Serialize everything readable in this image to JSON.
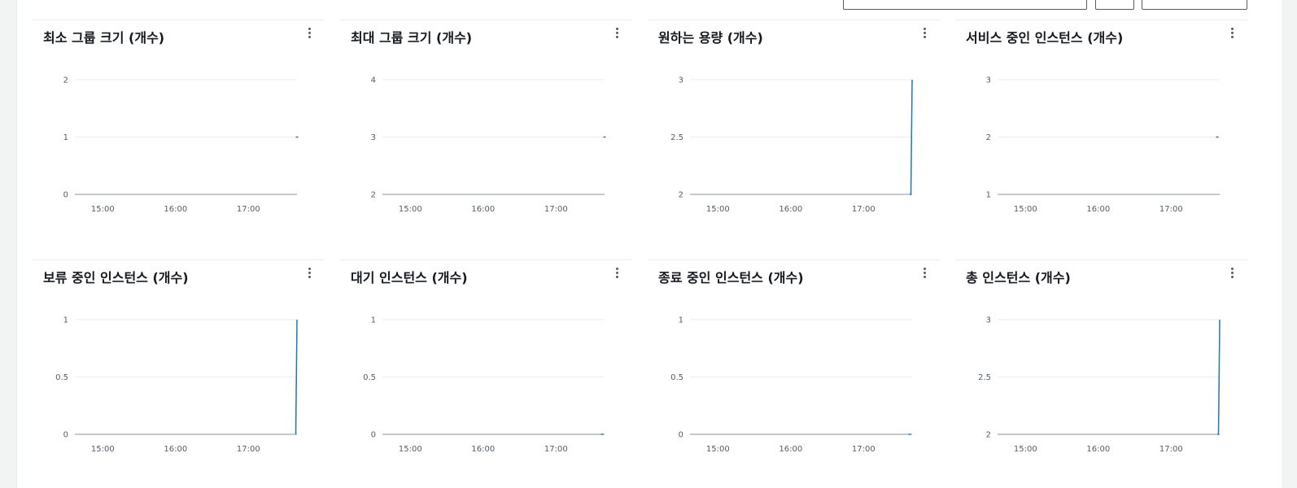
{
  "charts": [
    {
      "title": "최소 그룹 크기 (개수)",
      "ylim": [
        0,
        2
      ],
      "yticks": [
        "2",
        "1",
        "0"
      ],
      "xticks": [
        "15:00",
        "16:00",
        "17:00"
      ],
      "series": [
        {
          "x": [
            "17:40"
          ],
          "y": [
            1
          ]
        }
      ]
    },
    {
      "title": "최대 그룹 크기 (개수)",
      "ylim": [
        2,
        4
      ],
      "yticks": [
        "4",
        "3",
        "2"
      ],
      "xticks": [
        "15:00",
        "16:00",
        "17:00"
      ],
      "series": [
        {
          "x": [
            "17:40"
          ],
          "y": [
            3
          ]
        }
      ]
    },
    {
      "title": "원하는 용량 (개수)",
      "ylim": [
        2,
        3
      ],
      "yticks": [
        "3",
        "2.5",
        "2"
      ],
      "xticks": [
        "15:00",
        "16:00",
        "17:00"
      ],
      "series": [
        {
          "x": [
            "17:38",
            "17:39",
            "17:40"
          ],
          "y": [
            2,
            2,
            3
          ]
        }
      ]
    },
    {
      "title": "서비스 중인 인스턴스 (개수)",
      "ylim": [
        1,
        3
      ],
      "yticks": [
        "3",
        "2",
        "1"
      ],
      "xticks": [
        "15:00",
        "16:00",
        "17:00"
      ],
      "series": [
        {
          "x": [
            "17:38"
          ],
          "y": [
            2
          ]
        }
      ]
    },
    {
      "title": "보류 중인 인스턴스 (개수)",
      "ylim": [
        0,
        1
      ],
      "yticks": [
        "1",
        "0.5",
        "0"
      ],
      "xticks": [
        "15:00",
        "16:00",
        "17:00"
      ],
      "series": [
        {
          "x": [
            "17:39",
            "17:40"
          ],
          "y": [
            0,
            1
          ]
        }
      ]
    },
    {
      "title": "대기 인스턴스 (개수)",
      "ylim": [
        0,
        1
      ],
      "yticks": [
        "1",
        "0.5",
        "0"
      ],
      "xticks": [
        "15:00",
        "16:00",
        "17:00"
      ],
      "series": [
        {
          "x": [
            "17:38"
          ],
          "y": [
            0
          ]
        }
      ]
    },
    {
      "title": "종료 중인 인스턴스 (개수)",
      "ylim": [
        0,
        1
      ],
      "yticks": [
        "1",
        "0.5",
        "0"
      ],
      "xticks": [
        "15:00",
        "16:00",
        "17:00"
      ],
      "series": [
        {
          "x": [
            "17:38"
          ],
          "y": [
            0
          ]
        }
      ]
    },
    {
      "title": "총 인스턴스 (개수)",
      "ylim": [
        2,
        3
      ],
      "yticks": [
        "3",
        "2.5",
        "2"
      ],
      "xticks": [
        "15:00",
        "16:00",
        "17:00"
      ],
      "series": [
        {
          "x": [
            "17:38",
            "17:39",
            "17:40"
          ],
          "y": [
            2,
            2,
            3
          ]
        }
      ]
    }
  ],
  "chart_data": [
    {
      "type": "line",
      "title": "최소 그룹 크기 (개수)",
      "ylim": [
        0,
        2
      ],
      "x": [
        "17:40"
      ],
      "series": [
        {
          "values": [
            1
          ]
        }
      ]
    },
    {
      "type": "line",
      "title": "최대 그룹 크기 (개수)",
      "ylim": [
        2,
        4
      ],
      "x": [
        "17:40"
      ],
      "series": [
        {
          "values": [
            3
          ]
        }
      ]
    },
    {
      "type": "line",
      "title": "원하는 용량 (개수)",
      "ylim": [
        2,
        3
      ],
      "x": [
        "17:38",
        "17:39",
        "17:40"
      ],
      "series": [
        {
          "values": [
            2,
            2,
            3
          ]
        }
      ]
    },
    {
      "type": "line",
      "title": "서비스 중인 인스턴스 (개수)",
      "ylim": [
        1,
        3
      ],
      "x": [
        "17:38"
      ],
      "series": [
        {
          "values": [
            2
          ]
        }
      ]
    },
    {
      "type": "line",
      "title": "보류 중인 인스턴스 (개수)",
      "ylim": [
        0,
        1
      ],
      "x": [
        "17:39",
        "17:40"
      ],
      "series": [
        {
          "values": [
            0,
            1
          ]
        }
      ]
    },
    {
      "type": "line",
      "title": "대기 인스턴스 (개수)",
      "ylim": [
        0,
        1
      ],
      "x": [
        "17:38"
      ],
      "series": [
        {
          "values": [
            0
          ]
        }
      ]
    },
    {
      "type": "line",
      "title": "종료 중인 인스턴스 (개수)",
      "ylim": [
        0,
        1
      ],
      "x": [
        "17:38"
      ],
      "series": [
        {
          "values": [
            0
          ]
        }
      ]
    },
    {
      "type": "line",
      "title": "총 인스턴스 (개수)",
      "ylim": [
        2,
        3
      ],
      "x": [
        "17:38",
        "17:39",
        "17:40"
      ],
      "series": [
        {
          "values": [
            2,
            2,
            3
          ]
        }
      ]
    }
  ],
  "colors": {
    "series": "#1f77b4",
    "grid": "#eaeded",
    "axis": "#879596"
  }
}
